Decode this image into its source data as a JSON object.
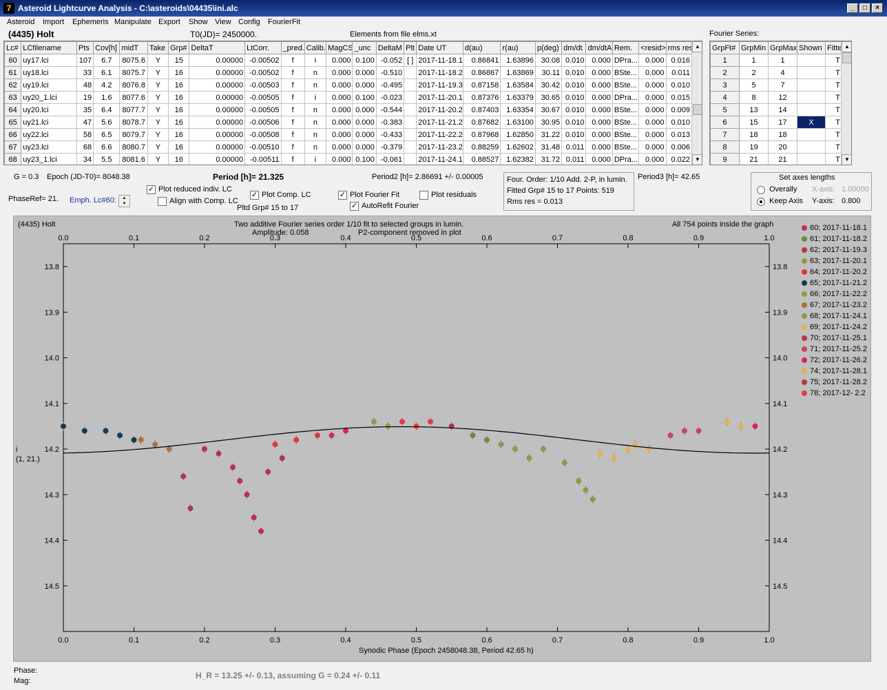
{
  "window": {
    "title": "Asteroid Lightcurve Analysis - C:\\asteroids\\04435\\ini.alc",
    "icon_text": "7"
  },
  "menu": [
    "Asteroid",
    "Import",
    "Ephemeris",
    "Manipulate",
    "Export",
    "Show",
    "View",
    "Config",
    "FourierFit"
  ],
  "header": {
    "asteroid": "(4435) Holt",
    "t0": "T0(JD)= 2450000.",
    "elements": "Elements from file elms.xt",
    "fourier_series_label": "Fourier Series:"
  },
  "lc_table": {
    "columns": [
      "Lc#",
      "LCfilename",
      "Pts",
      "Cov[h]",
      "midT",
      "Take",
      "Grp#",
      "DeltaT",
      "LtCorr.",
      "_pred.",
      "Calib.",
      "MagCS",
      "_unc",
      "DeltaM",
      "Plt",
      "Date UT",
      "d(au)",
      "r(au)",
      "p(deg)",
      "dm/dt",
      "dm/dtA",
      "Rem.",
      "<resid>",
      "rms res"
    ],
    "rows": [
      [
        "60",
        "uy17.lci",
        "107",
        "6.7",
        "8075.6",
        "Y",
        "15",
        "0.00000",
        "-0.00502",
        "f",
        "i",
        "0.000",
        "0.100",
        "-0.052",
        "[ ]",
        "2017-11-18.1",
        "0.86841",
        "1.63896",
        "30.08",
        "0.010",
        "0.000",
        "DPra...",
        "0.000",
        "0.016"
      ],
      [
        "61",
        "uy18.lci",
        "33",
        "6.1",
        "8075.7",
        "Y",
        "16",
        "0.00000",
        "-0.00502",
        "f",
        "n",
        "0.000",
        "0.000",
        "-0.510",
        "",
        "2017-11-18.2",
        "0.86867",
        "1.63869",
        "30.11",
        "0.010",
        "0.000",
        "BSte...",
        "0.000",
        "0.011"
      ],
      [
        "62",
        "uy19.lci",
        "48",
        "4.2",
        "8076.8",
        "Y",
        "16",
        "0.00000",
        "-0.00503",
        "f",
        "n",
        "0.000",
        "0.000",
        "-0.495",
        "",
        "2017-11-19.3",
        "0.87158",
        "1.63584",
        "30.42",
        "0.010",
        "0.000",
        "BSte...",
        "0.000",
        "0.010"
      ],
      [
        "63",
        "uy20_1.lci",
        "19",
        "1.6",
        "8077.6",
        "Y",
        "16",
        "0.00000",
        "-0.00505",
        "f",
        "i",
        "0.000",
        "0.100",
        "-0.023",
        "",
        "2017-11-20.1",
        "0.87376",
        "1.63379",
        "30.65",
        "0.010",
        "0.000",
        "DPra...",
        "0.000",
        "0.015"
      ],
      [
        "64",
        "uy20.lci",
        "35",
        "6.4",
        "8077.7",
        "Y",
        "16",
        "0.00000",
        "-0.00505",
        "f",
        "n",
        "0.000",
        "0.000",
        "-0.544",
        "",
        "2017-11-20.2",
        "0.87403",
        "1.63354",
        "30.67",
        "0.010",
        "0.000",
        "BSte...",
        "0.000",
        "0.009"
      ],
      [
        "65",
        "uy21.lci",
        "47",
        "5.6",
        "8078.7",
        "Y",
        "16",
        "0.00000",
        "-0.00506",
        "f",
        "n",
        "0.000",
        "0.000",
        "-0.383",
        "",
        "2017-11-21.2",
        "0.87682",
        "1.63100",
        "30.95",
        "0.010",
        "0.000",
        "BSte...",
        "0.000",
        "0.010"
      ],
      [
        "66",
        "uy22.lci",
        "58",
        "6.5",
        "8079.7",
        "Y",
        "16",
        "0.00000",
        "-0.00508",
        "f",
        "n",
        "0.000",
        "0.000",
        "-0.433",
        "",
        "2017-11-22.2",
        "0.87968",
        "1.62850",
        "31.22",
        "0.010",
        "0.000",
        "BSte...",
        "0.000",
        "0.013"
      ],
      [
        "67",
        "uy23.lci",
        "68",
        "6.6",
        "8080.7",
        "Y",
        "16",
        "0.00000",
        "-0.00510",
        "f",
        "n",
        "0.000",
        "0.000",
        "-0.379",
        "",
        "2017-11-23.2",
        "0.88259",
        "1.62602",
        "31.48",
        "0.011",
        "0.000",
        "BSte...",
        "0.000",
        "0.006"
      ],
      [
        "68",
        "uy23_1.lci",
        "34",
        "5.5",
        "8081.6",
        "Y",
        "16",
        "0.00000",
        "-0.00511",
        "f",
        "i",
        "0.000",
        "0.100",
        "-0.061",
        "",
        "2017-11-24.1",
        "0.88527",
        "1.62382",
        "31.72",
        "0.011",
        "0.000",
        "DPra...",
        "0.000",
        "0.022"
      ]
    ]
  },
  "fourier_table": {
    "columns": [
      "GrpFt#",
      "GrpMin",
      "GrpMax",
      "Shown",
      "Fitte"
    ],
    "rows": [
      [
        "1",
        "1",
        "1",
        "",
        "T"
      ],
      [
        "2",
        "2",
        "4",
        "",
        "T"
      ],
      [
        "3",
        "5",
        "7",
        "",
        "T"
      ],
      [
        "4",
        "8",
        "12",
        "",
        "T"
      ],
      [
        "5",
        "13",
        "14",
        "",
        "T"
      ],
      [
        "6",
        "15",
        "17",
        "X",
        "T"
      ],
      [
        "7",
        "18",
        "18",
        "",
        "T"
      ],
      [
        "8",
        "19",
        "20",
        "",
        "T"
      ],
      [
        "9",
        "21",
        "21",
        "",
        "T"
      ]
    ]
  },
  "controls": {
    "g": "G = 0.3",
    "epoch": "Epoch (JD-T0)= 8048.38",
    "period": "Period [h]= 21.325",
    "period2": "Period2 [h]= 2.86691 +/- 0.00005",
    "period3": "Period3 [h]= 42.65",
    "phaseref": "PhaseRef= 21.",
    "emph": "Emph. Lc#60:",
    "plot_reduced": "Plot reduced indiv. LC",
    "align": "Align with Comp. LC",
    "plot_comp": "Plot Comp. LC",
    "pltd_grp": "Pltd Grp#  15 to   17",
    "plot_fourier": "Plot Fourier Fit",
    "autorefit": "AutoRefit Fourier",
    "plot_residuals": "Plot residuals",
    "fourier_info": {
      "line1": "Four. Order:  1/10     Add. 2-P, in lumin.",
      "line2": "Fitted Grp# 15 to 17 Points: 519",
      "line3": "Rms res     = 0.013"
    },
    "axes": {
      "title": "Set axes lengths",
      "overall": "Overally",
      "keep": "Keep Axis",
      "xaxis_label": "X-axis:",
      "xaxis_value": "1.00000",
      "yaxis_label": "Y-axis:",
      "yaxis_value": "0.800"
    }
  },
  "plot": {
    "name": "(4435) Holt",
    "subtitle1": "Two additive Fourier series order 1/10 fit to selected groups in lumin.",
    "subtitle2": "Amplitude: 0.058",
    "subtitle3": "P2-component removed in plot",
    "points_note": "All 754 points inside the graph",
    "ylabel1": "i",
    "ylabel2": "(1, 21.)",
    "xlabel": "Synodic Phase (Epoch 2458048.38, Period 42.65 h)"
  },
  "chart_data": {
    "type": "scatter",
    "xlim": [
      0.0,
      1.0
    ],
    "ylim": [
      14.6,
      13.75
    ],
    "x_ticks": [
      "0.0",
      "0.1",
      "0.2",
      "0.3",
      "0.4",
      "0.5",
      "0.6",
      "0.7",
      "0.8",
      "0.9",
      "1.0"
    ],
    "y_ticks": [
      "13.8",
      "13.9",
      "14.0",
      "14.1",
      "14.2",
      "14.3",
      "14.4",
      "14.5"
    ],
    "y_axis_inverted": true,
    "fourier_fit": {
      "mean": 14.18,
      "amplitude": 0.029,
      "peak_phase": 0.48
    },
    "series": [
      {
        "name": "60; 2017-11-18.1",
        "color": "#b8324a",
        "phase": [
          0.55
        ],
        "mag": [
          14.15
        ]
      },
      {
        "name": "61; 2017-11-18.2",
        "color": "#6b8a3a",
        "phase": [
          0.58,
          0.6
        ],
        "mag": [
          14.17,
          14.18
        ]
      },
      {
        "name": "62; 2017-11-19.3",
        "color": "#b8324a",
        "phase": [
          0.26,
          0.27,
          0.28
        ],
        "mag": [
          14.3,
          14.35,
          14.38
        ]
      },
      {
        "name": "63; 2017-11-20.1",
        "color": "#8e9a48",
        "phase": [
          0.62,
          0.64,
          0.66
        ],
        "mag": [
          14.19,
          14.2,
          14.22
        ]
      },
      {
        "name": "64; 2017-11-20.2",
        "color": "#de3648",
        "phase": [
          0.3,
          0.33,
          0.36
        ],
        "mag": [
          14.19,
          14.18,
          14.17
        ]
      },
      {
        "name": "65; 2017-11-21.2",
        "color": "#143a52",
        "phase": [
          0.0,
          0.03,
          0.06,
          0.08,
          0.1
        ],
        "mag": [
          14.15,
          14.16,
          14.16,
          14.17,
          14.18
        ]
      },
      {
        "name": "66; 2017-11-22.2",
        "color": "#8e9a48",
        "phase": [
          0.68,
          0.71,
          0.73
        ],
        "mag": [
          14.2,
          14.23,
          14.27
        ]
      },
      {
        "name": "67; 2017-11-23.2",
        "color": "#b07040",
        "phase": [
          0.11,
          0.13,
          0.15
        ],
        "mag": [
          14.18,
          14.19,
          14.2
        ]
      },
      {
        "name": "68; 2017-11-24.1",
        "color": "#8e9a48",
        "phase": [
          0.44,
          0.46,
          0.74,
          0.75
        ],
        "mag": [
          14.14,
          14.15,
          14.29,
          14.31
        ]
      },
      {
        "name": "69; 2017-11-24.2",
        "color": "#e8b050",
        "phase": [
          0.81,
          0.83,
          0.94,
          0.96
        ],
        "mag": [
          14.19,
          14.2,
          14.14,
          14.15
        ]
      },
      {
        "name": "70; 2017-11-25.1",
        "color": "#b8324a",
        "phase": [
          0.17,
          0.18,
          0.22,
          0.24
        ],
        "mag": [
          14.26,
          14.33,
          14.21,
          14.24
        ]
      },
      {
        "name": "71; 2017-11-25.2",
        "color": "#d04060",
        "phase": [
          0.86,
          0.88,
          0.9
        ],
        "mag": [
          14.17,
          14.16,
          14.16
        ]
      },
      {
        "name": "72; 2017-11-26.2",
        "color": "#d42a50",
        "phase": [
          0.38,
          0.4,
          0.98
        ],
        "mag": [
          14.17,
          14.16,
          14.15
        ]
      },
      {
        "name": "74; 2017-11-28.1",
        "color": "#e8b050",
        "phase": [
          0.76,
          0.78,
          0.8
        ],
        "mag": [
          14.21,
          14.22,
          14.2
        ]
      },
      {
        "name": "75; 2017-11-28.2",
        "color": "#b8324a",
        "phase": [
          0.2,
          0.25,
          0.29,
          0.31
        ],
        "mag": [
          14.2,
          14.27,
          14.25,
          14.22
        ]
      },
      {
        "name": "78; 2017-12- 2.2",
        "color": "#e8384a",
        "phase": [
          0.48,
          0.5,
          0.52
        ],
        "mag": [
          14.14,
          14.15,
          14.14
        ]
      }
    ]
  },
  "footer": {
    "phase": "Phase:",
    "mag": "Mag:",
    "hr": "H_R = 13.25 +/- 0.13, assuming G = 0.24 +/- 0.11"
  }
}
